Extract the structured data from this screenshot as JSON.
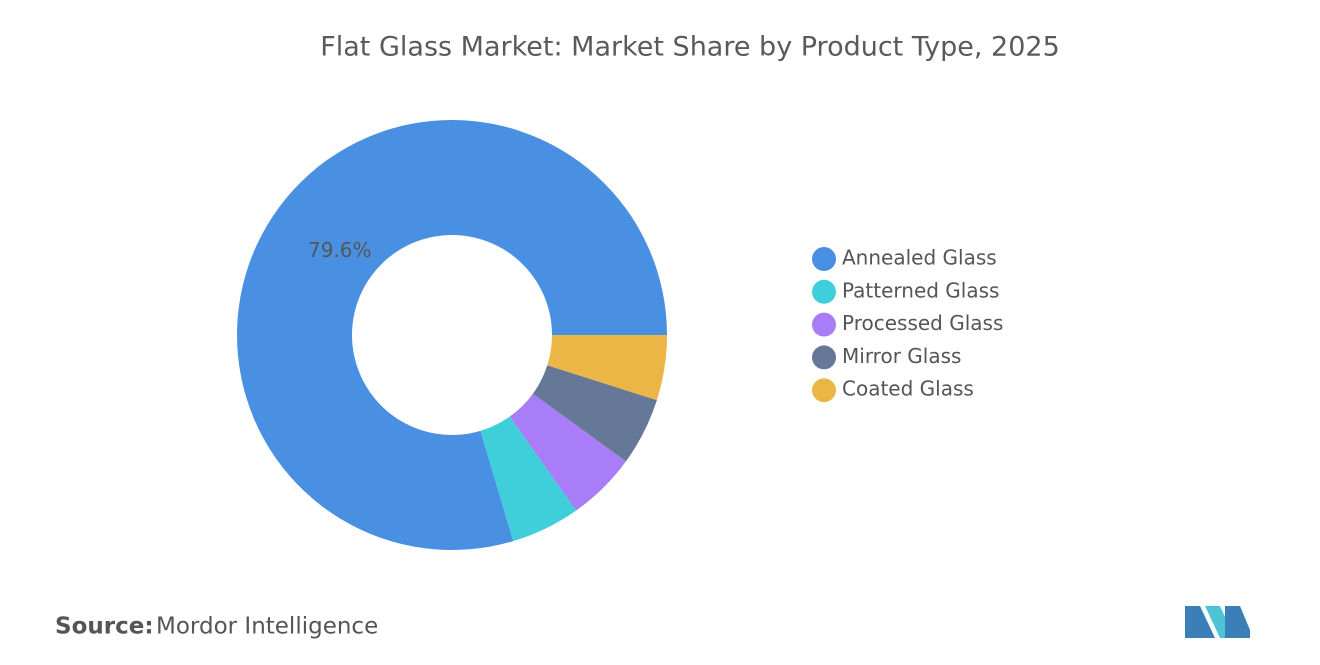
{
  "chart_data": {
    "type": "donut",
    "title": "Flat Glass Market: Market Share by Product Type, 2025",
    "categories": [
      "Annealed Glass",
      "Patterned Glass",
      "Processed Glass",
      "Mirror Glass",
      "Coated Glass"
    ],
    "values": [
      79.6,
      5.2,
      5.2,
      5.1,
      4.9
    ],
    "value_labels": [
      "79.6%",
      null,
      null,
      null,
      null
    ],
    "colors": [
      "#4a90e2",
      "#3ecfdb",
      "#a97df7",
      "#667897",
      "#ebb646"
    ],
    "legend": "right",
    "source_label": "Source:",
    "source": "Mordor Intelligence"
  }
}
